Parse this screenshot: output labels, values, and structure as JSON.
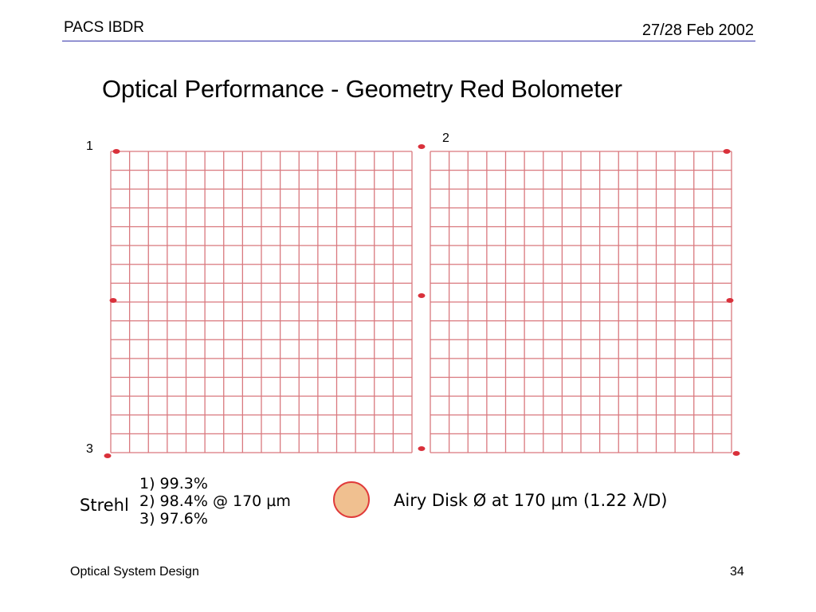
{
  "header": {
    "left": "PACS IBDR",
    "right": "27/28 Feb 2002"
  },
  "title": "Optical Performance - Geometry Red Bolometer",
  "field_labels": {
    "one": "1",
    "two": "2",
    "three": "3"
  },
  "grid": {
    "left_columns": 16,
    "right_columns": 16,
    "rows": 16,
    "line_color": "#d9787e",
    "spot_color": "#d9303a"
  },
  "strehl": {
    "label": "Strehl",
    "values": [
      "1) 99.3%",
      "2) 98.4% @ 170 µm",
      "3) 97.6%"
    ]
  },
  "airy": {
    "label": "Airy Disk Ø at 170 µm (1.22 λ/D)",
    "fill": "#f0c090",
    "stroke": "#e03a3a"
  },
  "footer": {
    "left": "Optical System Design",
    "right": "34"
  }
}
